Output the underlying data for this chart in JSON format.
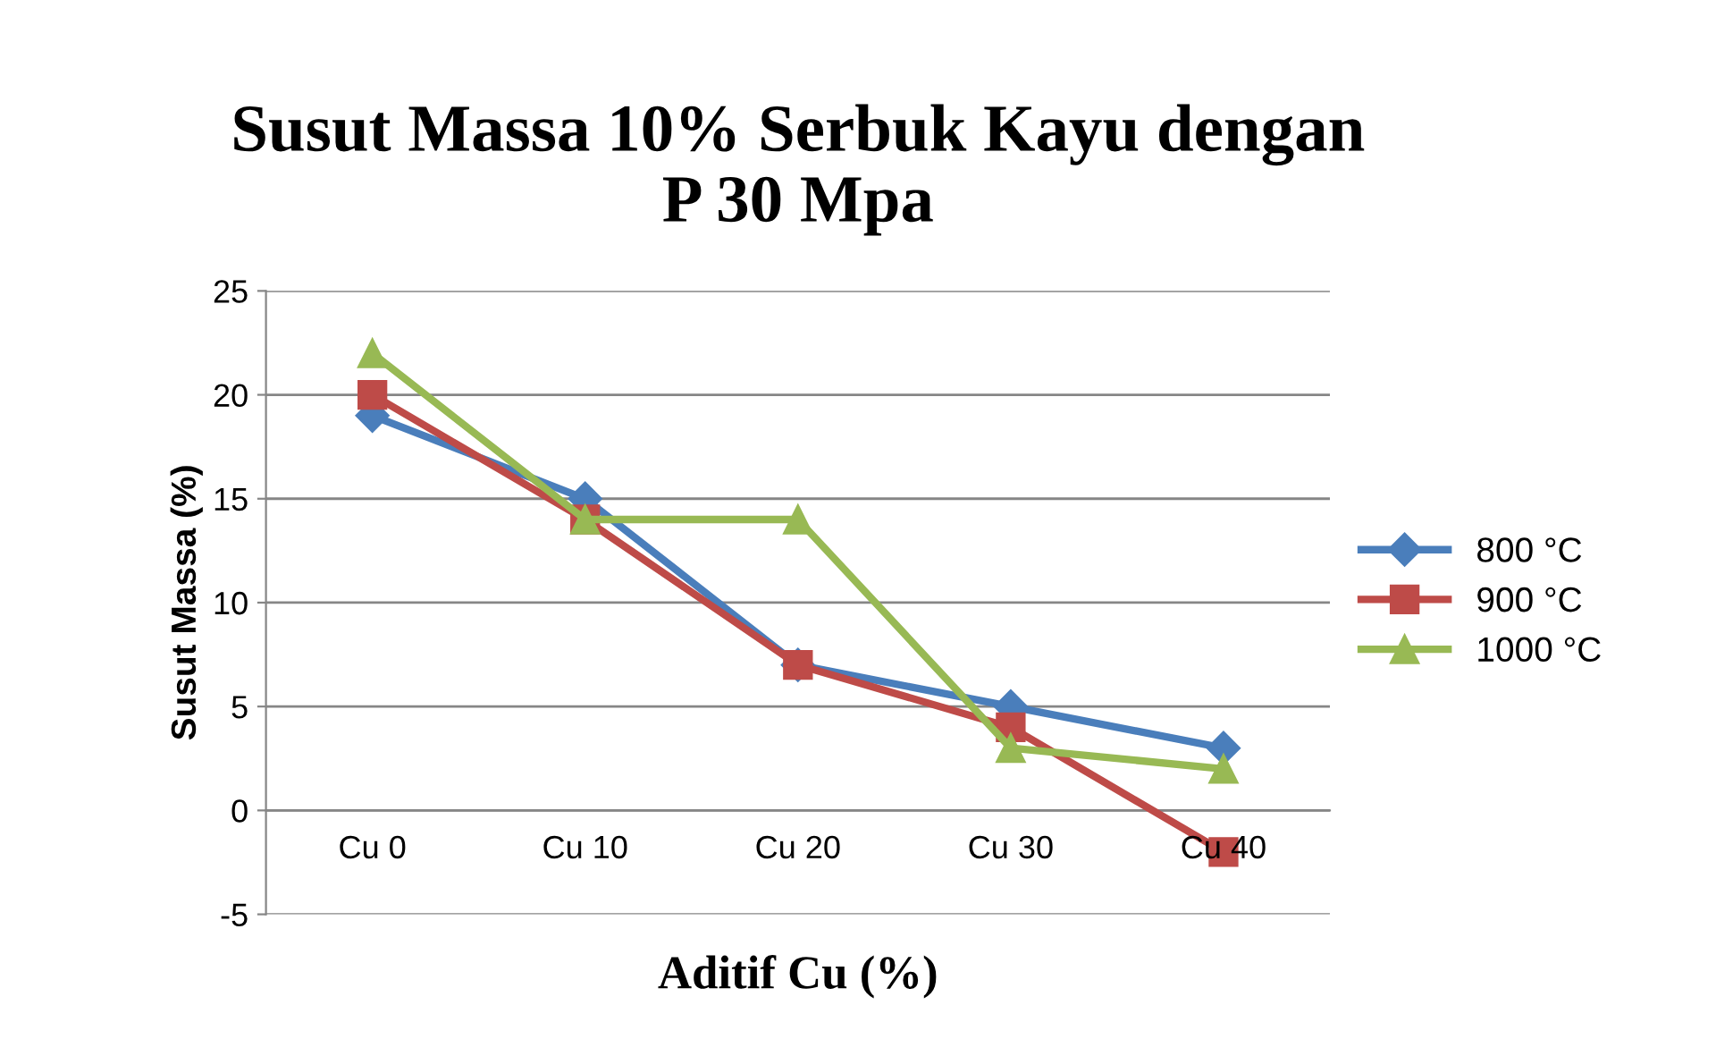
{
  "chart_data": {
    "type": "line",
    "title": "Susut Massa 10% Serbuk Kayu dengan\nP 30 Mpa",
    "xlabel": "Aditif Cu (%)",
    "ylabel": "Susut Massa (%)",
    "categories": [
      "Cu 0",
      "Cu 10",
      "Cu 20",
      "Cu 30",
      "Cu 40"
    ],
    "series": [
      {
        "name": "800 °C",
        "color": "#4a7ebb",
        "marker": "diamond",
        "values": [
          19,
          15,
          7,
          5,
          3
        ]
      },
      {
        "name": "900 °C",
        "color": "#be4b48",
        "marker": "square",
        "values": [
          20,
          14,
          7,
          4,
          -2
        ]
      },
      {
        "name": "1000 °C",
        "color": "#98b954",
        "marker": "triangle",
        "values": [
          22,
          14,
          14,
          3,
          2
        ]
      }
    ],
    "ylim": [
      -5,
      25
    ],
    "yticks": [
      -5,
      0,
      5,
      10,
      15,
      20,
      25
    ],
    "grid": "y",
    "legend": "right",
    "line_style": "solid"
  }
}
